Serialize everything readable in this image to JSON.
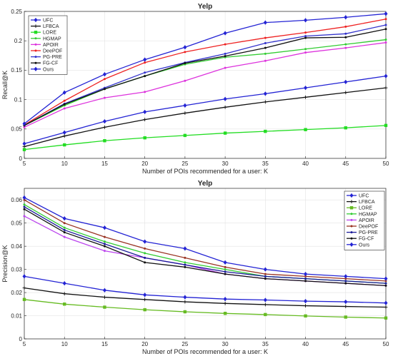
{
  "chart_data": [
    {
      "type": "line",
      "title": "Yelp",
      "xlabel": "Number of POIs recommended for a user: K",
      "ylabel": "Recall@K",
      "x": [
        5,
        10,
        15,
        20,
        25,
        30,
        35,
        40,
        45,
        50
      ],
      "xlim": [
        5,
        50
      ],
      "ylim": [
        0,
        0.25
      ],
      "yticks": [
        0,
        0.05,
        0.1,
        0.15,
        0.2,
        0.25
      ],
      "xticks": [
        5,
        10,
        15,
        20,
        25,
        30,
        35,
        40,
        45,
        50
      ],
      "grid": true,
      "legend_position": "top-left",
      "series": [
        {
          "name": "UFC",
          "color": "#2323d4",
          "marker": "diamond",
          "values": [
            0.025,
            0.044,
            0.063,
            0.079,
            0.09,
            0.101,
            0.11,
            0.12,
            0.13,
            0.14
          ]
        },
        {
          "name": "LFBCA",
          "color": "#111111",
          "marker": "plus",
          "values": [
            0.02,
            0.038,
            0.053,
            0.066,
            0.077,
            0.087,
            0.096,
            0.104,
            0.112,
            0.12
          ]
        },
        {
          "name": "LORE",
          "color": "#22dd22",
          "marker": "square",
          "values": [
            0.015,
            0.023,
            0.03,
            0.035,
            0.039,
            0.043,
            0.046,
            0.049,
            0.052,
            0.056
          ]
        },
        {
          "name": "HGMAP",
          "color": "#33cc33",
          "marker": "circle",
          "values": [
            0.056,
            0.09,
            0.118,
            0.14,
            0.16,
            0.172,
            0.178,
            0.186,
            0.194,
            0.202
          ]
        },
        {
          "name": "APOIR",
          "color": "#dd33dd",
          "marker": "circle",
          "values": [
            0.053,
            0.085,
            0.103,
            0.113,
            0.132,
            0.154,
            0.166,
            0.18,
            0.188,
            0.197
          ]
        },
        {
          "name": "DeePOF",
          "color": "#ee2222",
          "marker": "circle",
          "values": [
            0.057,
            0.098,
            0.135,
            0.163,
            0.181,
            0.194,
            0.205,
            0.214,
            0.224,
            0.237
          ]
        },
        {
          "name": "PG-PRE",
          "color": "#3333cc",
          "marker": "circle",
          "values": [
            0.056,
            0.093,
            0.12,
            0.146,
            0.163,
            0.178,
            0.196,
            0.208,
            0.212,
            0.227
          ]
        },
        {
          "name": "FG-CF",
          "color": "#111111",
          "marker": "circle",
          "values": [
            0.056,
            0.092,
            0.118,
            0.14,
            0.162,
            0.174,
            0.188,
            0.205,
            0.206,
            0.22
          ]
        },
        {
          "name": "Ours",
          "color": "#2323d4",
          "marker": "diamond",
          "values": [
            0.059,
            0.112,
            0.143,
            0.168,
            0.189,
            0.213,
            0.231,
            0.235,
            0.24,
            0.246
          ]
        }
      ]
    },
    {
      "type": "line",
      "title": "Yelp",
      "xlabel": "Number of POIs recommended for a user: K",
      "ylabel": "Precision@K",
      "x": [
        5,
        10,
        15,
        20,
        25,
        30,
        35,
        40,
        45,
        50
      ],
      "xlim": [
        5,
        50
      ],
      "ylim": [
        0,
        0.065
      ],
      "yticks": [
        0,
        0.01,
        0.02,
        0.03,
        0.04,
        0.05,
        0.06
      ],
      "xticks": [
        5,
        10,
        15,
        20,
        25,
        30,
        35,
        40,
        45,
        50
      ],
      "grid": true,
      "legend_position": "top-right",
      "series": [
        {
          "name": "UFC",
          "color": "#2323d4",
          "marker": "diamond",
          "values": [
            0.027,
            0.024,
            0.021,
            0.019,
            0.018,
            0.0172,
            0.0168,
            0.0163,
            0.016,
            0.0155
          ]
        },
        {
          "name": "LFBCA",
          "color": "#111111",
          "marker": "plus",
          "values": [
            0.022,
            0.0195,
            0.018,
            0.017,
            0.016,
            0.0153,
            0.0148,
            0.0143,
            0.014,
            0.0137
          ]
        },
        {
          "name": "LORE",
          "color": "#66bb22",
          "marker": "square",
          "values": [
            0.017,
            0.015,
            0.0137,
            0.0126,
            0.0117,
            0.011,
            0.0105,
            0.0099,
            0.0094,
            0.009
          ]
        },
        {
          "name": "HGMAP",
          "color": "#33cc33",
          "marker": "circle",
          "values": [
            0.058,
            0.048,
            0.042,
            0.037,
            0.033,
            0.03,
            0.027,
            0.026,
            0.025,
            0.024
          ]
        },
        {
          "name": "APOIR",
          "color": "#bb44ee",
          "marker": "circle",
          "values": [
            0.053,
            0.044,
            0.038,
            0.035,
            0.032,
            0.028,
            0.026,
            0.025,
            0.024,
            0.023
          ]
        },
        {
          "name": "DeePOF",
          "color": "#993322",
          "marker": "circle",
          "values": [
            0.06,
            0.05,
            0.044,
            0.039,
            0.035,
            0.031,
            0.028,
            0.027,
            0.026,
            0.025
          ]
        },
        {
          "name": "PG-PRE",
          "color": "#1a1a99",
          "marker": "circle",
          "values": [
            0.057,
            0.047,
            0.041,
            0.035,
            0.032,
            0.029,
            0.027,
            0.026,
            0.025,
            0.024
          ]
        },
        {
          "name": "FG-CF",
          "color": "#111111",
          "marker": "circle",
          "values": [
            0.056,
            0.046,
            0.04,
            0.033,
            0.031,
            0.028,
            0.026,
            0.025,
            0.024,
            0.023
          ]
        },
        {
          "name": "Ours",
          "color": "#2323d4",
          "marker": "diamond",
          "values": [
            0.061,
            0.052,
            0.048,
            0.042,
            0.039,
            0.033,
            0.03,
            0.028,
            0.027,
            0.026
          ]
        }
      ]
    }
  ]
}
